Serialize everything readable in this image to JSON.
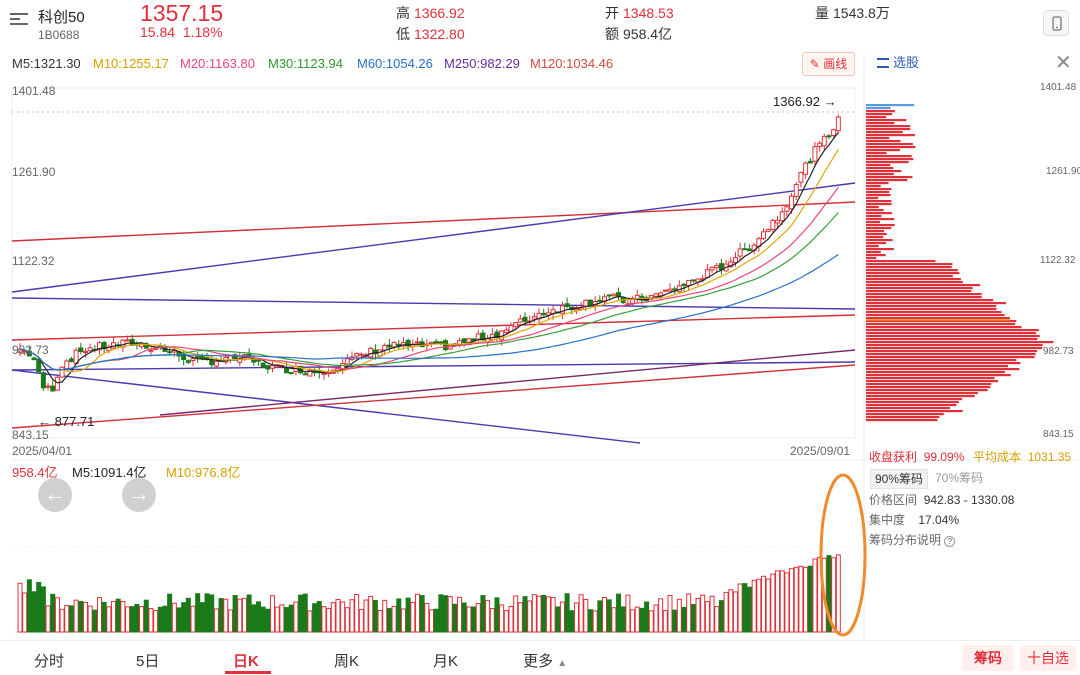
{
  "header": {
    "name": "科创50",
    "code": "1B0688",
    "price": "1357.15",
    "change": "15.84",
    "change_pct": "1.18%",
    "high_label": "高",
    "high": "1366.92",
    "low_label": "低",
    "low": "1322.80",
    "open_label": "开",
    "open": "1348.53",
    "amount_label": "额",
    "amount": "958.4亿",
    "volume_label": "量",
    "volume": "1543.8万"
  },
  "ma": {
    "m5": "M5:1321.30",
    "m10": "M10:1255.17",
    "m20": "M20:1163.80",
    "m30": "M30:1123.94",
    "m60": "M60:1054.26",
    "m250": "M250:982.29",
    "m120": "M120:1034.46"
  },
  "colors": {
    "m5": "#222222",
    "m10": "#e3a600",
    "m20": "#e8457a",
    "m30": "#3aa03a",
    "m60": "#2a6fc9",
    "m250": "#6a2aa0",
    "m120": "#d24a3a",
    "up": "#e0303a",
    "down": "#1a7a1a"
  },
  "toolbar": {
    "draw_label": "画线",
    "xuangu_label": "选股"
  },
  "price_axis": {
    "ticks": [
      "1401.48",
      "1261.90",
      "1122.32",
      "982.73",
      "843.15"
    ],
    "high_marker": "1366.92",
    "low_marker": "877.71"
  },
  "dates": {
    "start": "2025/04/01",
    "end": "2025/09/01"
  },
  "volume_panel": {
    "amount": "958.4亿",
    "m5": "M5:1091.4亿",
    "m10": "M10:976.8亿"
  },
  "chip": {
    "profit_label": "收盘获利",
    "profit": "99.09%",
    "cost_label": "平均成本",
    "cost": "1031.35",
    "tab90": "90%筹码",
    "tab70": "70%筹码",
    "range_label": "价格区间",
    "range": "942.83 - 1330.08",
    "conc_label": "集中度",
    "conc": "17.04%",
    "help": "筹码分布说明"
  },
  "bottom_tabs": [
    "分时",
    "5日",
    "日K",
    "周K",
    "月K",
    "更多"
  ],
  "bottom_buttons": {
    "chouma": "筹码",
    "zixuan": "十自选"
  }
}
